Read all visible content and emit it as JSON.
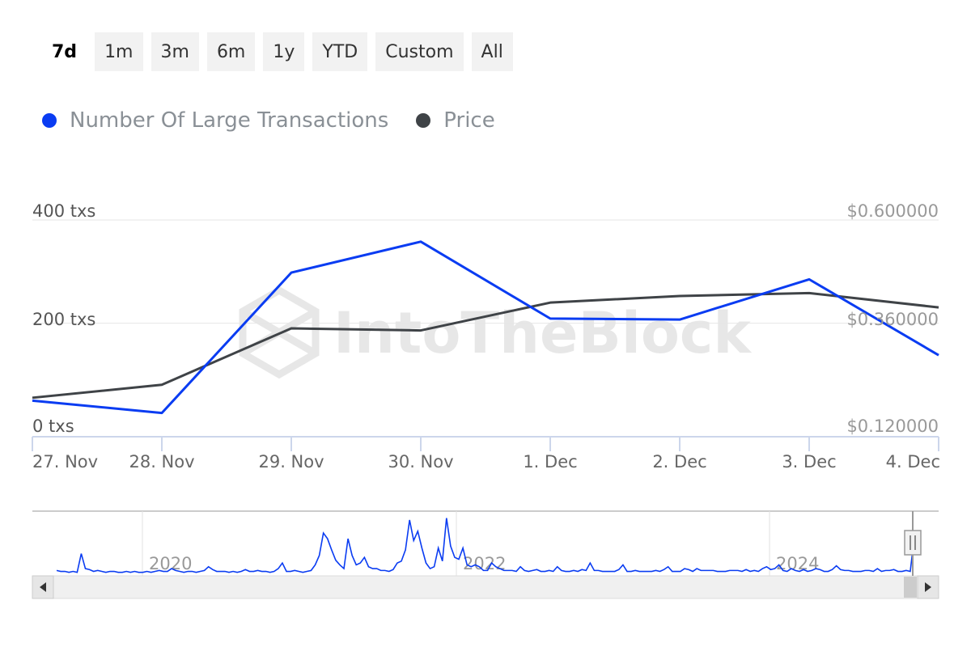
{
  "range_buttons": [
    "7d",
    "1m",
    "3m",
    "6m",
    "1y",
    "YTD",
    "Custom",
    "All"
  ],
  "active_range": "7d",
  "watermark": "IntoTheBlock",
  "colors": {
    "transactions": "#0a3cf2",
    "price": "#3f4347",
    "grid": "#e6e6e6",
    "axis": "#ccd6eb"
  },
  "chart_data": {
    "type": "line",
    "categories": [
      "27. Nov",
      "28. Nov",
      "29. Nov",
      "30. Nov",
      "1. Dec",
      "2. Dec",
      "3. Dec",
      "4. Dec"
    ],
    "series": [
      {
        "name": "Number Of Large Transactions",
        "axis": "left",
        "values": [
          50,
          26,
          298,
          358,
          209,
          207,
          285,
          138
        ]
      },
      {
        "name": "Price",
        "axis": "right",
        "values": [
          0.2063,
          0.2351,
          0.36,
          0.3554,
          0.417,
          0.4317,
          0.4382,
          0.4064
        ]
      }
    ],
    "y_left": {
      "ticks": [
        "0 txs",
        "200 txs",
        "400 txs"
      ],
      "min": -20,
      "max": 400
    },
    "y_right": {
      "ticks": [
        "$0.120000",
        "$0.360000",
        "$0.600000"
      ],
      "min": 0.12,
      "max": 0.6
    },
    "grid": true,
    "legend_position": "top-left",
    "navigator": {
      "labels": [
        "2020",
        "2022",
        "2024"
      ],
      "series": [
        4,
        3,
        3,
        2,
        3,
        2,
        22,
        6,
        5,
        3,
        4,
        3,
        2,
        3,
        3,
        2,
        2,
        3,
        2,
        3,
        2,
        2,
        3,
        2,
        3,
        4,
        3,
        3,
        6,
        4,
        3,
        2,
        3,
        3,
        2,
        3,
        4,
        8,
        5,
        3,
        3,
        3,
        2,
        3,
        2,
        3,
        5,
        3,
        3,
        4,
        3,
        3,
        2,
        3,
        6,
        12,
        3,
        3,
        4,
        3,
        2,
        3,
        4,
        10,
        20,
        44,
        38,
        26,
        15,
        10,
        6,
        38,
        20,
        10,
        12,
        18,
        8,
        6,
        6,
        4,
        4,
        3,
        5,
        12,
        14,
        26,
        58,
        36,
        46,
        28,
        12,
        6,
        8,
        28,
        14,
        60,
        30,
        18,
        16,
        28,
        10,
        8,
        10,
        8,
        4,
        4,
        12,
        8,
        6,
        4,
        4,
        4,
        3,
        8,
        4,
        3,
        4,
        5,
        3,
        3,
        4,
        3,
        8,
        4,
        3,
        3,
        4,
        3,
        5,
        4,
        12,
        4,
        4,
        3,
        3,
        3,
        3,
        5,
        10,
        3,
        3,
        4,
        3,
        3,
        3,
        3,
        4,
        3,
        5,
        8,
        3,
        3,
        3,
        6,
        5,
        3,
        6,
        4,
        4,
        4,
        4,
        3,
        3,
        3,
        4,
        4,
        4,
        3,
        5,
        3,
        4,
        3,
        6,
        8,
        5,
        6,
        10,
        4,
        3,
        6,
        4,
        3,
        5,
        3,
        4,
        6,
        5,
        3,
        3,
        5,
        9,
        5,
        4,
        4,
        3,
        3,
        3,
        4,
        4,
        3,
        6,
        3,
        4,
        4,
        5,
        3,
        3,
        4,
        3,
        40
      ]
    }
  }
}
